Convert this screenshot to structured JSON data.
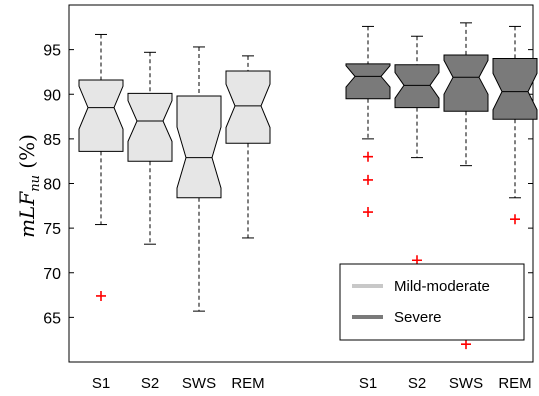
{
  "chart_data": {
    "type": "box",
    "ylabel": "mLF_nu (%)",
    "ylim": [
      60,
      100
    ],
    "yticks": [
      65,
      70,
      75,
      80,
      85,
      90,
      95
    ],
    "grid": false,
    "legend_position": "bottom-right",
    "colors": {
      "mild": "#e6e6e6",
      "severe": "#7a7a7a",
      "legend_mild": "#c8c8c8",
      "outlier": "#ff0000"
    },
    "groups": [
      {
        "name": "Mild-moderate",
        "boxes": [
          {
            "category": "S1",
            "whisker_low": 75.4,
            "q1": 83.6,
            "median": 88.5,
            "q3": 91.6,
            "whisker_high": 96.7,
            "outliers": [
              67.4
            ]
          },
          {
            "category": "S2",
            "whisker_low": 73.2,
            "q1": 82.5,
            "median": 87.0,
            "q3": 90.1,
            "whisker_high": 94.7,
            "outliers": []
          },
          {
            "category": "SWS",
            "whisker_low": 65.7,
            "q1": 78.4,
            "median": 82.9,
            "q3": 89.8,
            "whisker_high": 95.3,
            "outliers": []
          },
          {
            "category": "REM",
            "whisker_low": 73.9,
            "q1": 84.5,
            "median": 88.7,
            "q3": 92.6,
            "whisker_high": 94.3,
            "outliers": []
          }
        ]
      },
      {
        "name": "Severe",
        "boxes": [
          {
            "category": "S1",
            "whisker_low": 85.0,
            "q1": 89.5,
            "median": 92.0,
            "q3": 93.4,
            "whisker_high": 97.6,
            "outliers": [
              83.0,
              80.4,
              76.8
            ]
          },
          {
            "category": "S2",
            "whisker_low": 82.9,
            "q1": 88.5,
            "median": 91.0,
            "q3": 93.3,
            "whisker_high": 96.5,
            "outliers": [
              71.4
            ]
          },
          {
            "category": "SWS",
            "whisker_low": 82.0,
            "q1": 88.1,
            "median": 91.9,
            "q3": 94.4,
            "whisker_high": 98.0,
            "outliers": [
              62.0
            ]
          },
          {
            "category": "REM",
            "whisker_low": 78.4,
            "q1": 87.2,
            "median": 90.3,
            "q3": 94.0,
            "whisker_high": 97.6,
            "outliers": [
              76.0
            ]
          }
        ]
      }
    ],
    "legend": [
      {
        "label": "Mild-moderate",
        "color": "#c8c8c8"
      },
      {
        "label": "Severe",
        "color": "#7a7a7a"
      }
    ]
  }
}
